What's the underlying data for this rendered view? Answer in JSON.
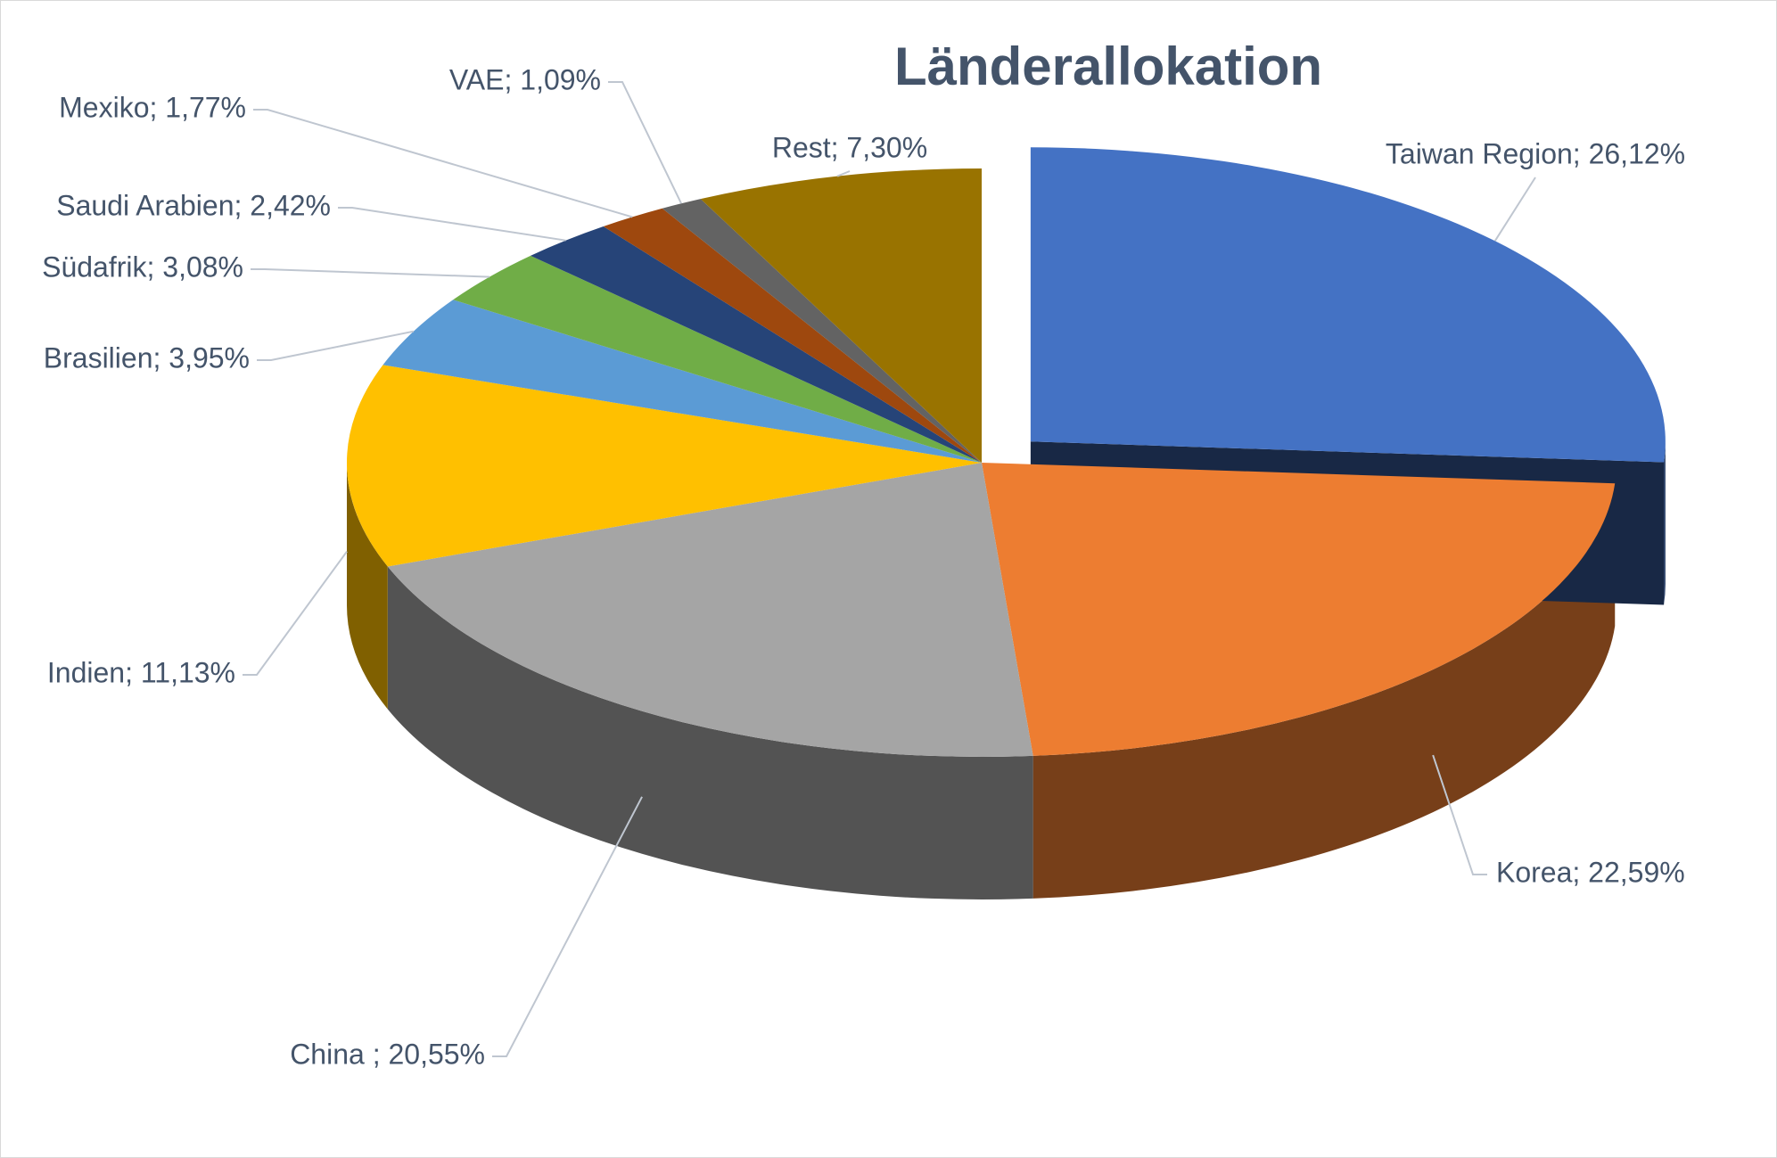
{
  "chart_data": {
    "type": "pie3d",
    "title": "Länderallokation",
    "values": [
      26.12,
      22.59,
      20.55,
      11.13,
      3.95,
      3.08,
      2.42,
      1.77,
      1.09,
      7.3
    ],
    "value_labels": [
      "Taiwan Region; 26,12%",
      "Korea; 22,59%",
      "China ; 20,55%",
      "Indien; 11,13%",
      "Brasilien; 3,95%",
      "Südafrik; 3,08%",
      "Saudi Arabien; 2,42%",
      "Mexiko; 1,77%",
      "VAE; 1,09%",
      "Rest; 7,30%"
    ],
    "colors": [
      "#4472c4",
      "#ed7d31",
      "#a5a5a5",
      "#ffc000",
      "#5b9bd5",
      "#70ad47",
      "#264478",
      "#9e480e",
      "#636363",
      "#997300"
    ],
    "exploded": [
      0
    ]
  }
}
